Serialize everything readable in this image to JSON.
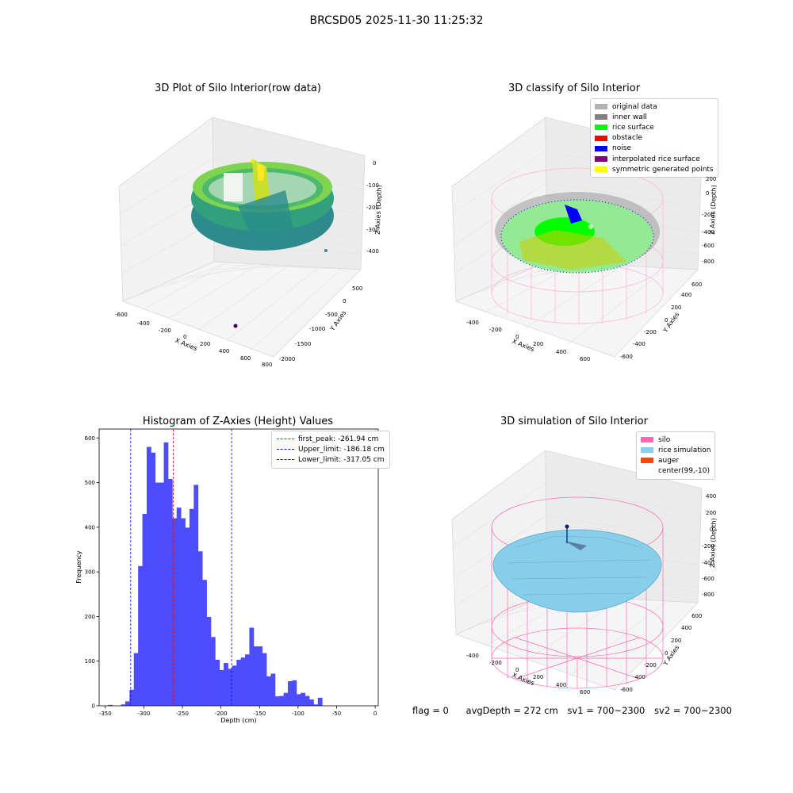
{
  "suptitle": "BRCSD05 2025-11-30 11:25:32",
  "panels": {
    "raw": {
      "title": "3D Plot of Silo Interior(row data)",
      "xlabel": "X Axies",
      "ylabel": "Y Axies",
      "zlabel": "Z Axies (Depth)",
      "xticks": [
        "-600",
        "-400",
        "-200",
        "0",
        "200",
        "400",
        "600",
        "800"
      ],
      "yticks": [
        "500",
        "0",
        "-500",
        "-1000",
        "-1500",
        "-2000"
      ],
      "zticks": [
        "0",
        "-100",
        "-200",
        "-300",
        "-400"
      ]
    },
    "classify": {
      "title": "3D classify of Silo Interior",
      "xlabel": "X Axies",
      "ylabel": "Y Axies",
      "zlabel": "Z Axies (Depth)",
      "xticks": [
        "-400",
        "-200",
        "0",
        "200",
        "400",
        "600"
      ],
      "yticks": [
        "600",
        "400",
        "200",
        "0",
        "-200",
        "-400",
        "-600"
      ],
      "zticks": [
        "200",
        "0",
        "-200",
        "-400",
        "-600",
        "-800"
      ],
      "legend": [
        {
          "label": "original data",
          "color": "#b3b3b3"
        },
        {
          "label": "inner wall",
          "color": "#808080"
        },
        {
          "label": "rice surface",
          "color": "#00ff00"
        },
        {
          "label": "obstacle",
          "color": "#ff0000"
        },
        {
          "label": "noise",
          "color": "#0000ff"
        },
        {
          "label": "interpolated rice surface",
          "color": "#800080"
        },
        {
          "label": "symmetric generated points",
          "color": "#ffff00"
        }
      ]
    },
    "simulation": {
      "title": "3D simulation of Silo Interior",
      "xlabel": "X Axies",
      "ylabel": "Y Axies",
      "zlabel": "Z Axies (Depth)",
      "xticks": [
        "-400",
        "-200",
        "0",
        "200",
        "400",
        "600"
      ],
      "yticks": [
        "600",
        "400",
        "200",
        "0",
        "-200",
        "-400",
        "-600"
      ],
      "zticks": [
        "400",
        "200",
        "0",
        "-200",
        "-400",
        "-600",
        "-800"
      ],
      "legend": [
        {
          "label": "silo",
          "color": "#ff69b4"
        },
        {
          "label": "rice simulation",
          "color": "#87ceeb"
        },
        {
          "label": "auger",
          "color": "#ff4500"
        },
        {
          "label": "center(99,-10)",
          "color": "none"
        }
      ]
    }
  },
  "chart_data": {
    "type": "bar",
    "title": "Histogram of Z-Axies (Height) Values",
    "xlabel": "Depth (cm)",
    "ylabel": "Frequency",
    "xlim": [
      -358,
      4
    ],
    "ylim": [
      0,
      620
    ],
    "xticks": [
      -350,
      -300,
      -250,
      -200,
      -150,
      -100,
      -50,
      0
    ],
    "yticks": [
      0,
      100,
      200,
      300,
      400,
      500,
      600
    ],
    "bar_color": "#4d4dff",
    "bin_start": -346.3,
    "bin_width": 5.55,
    "values": [
      2,
      0,
      0,
      3,
      10,
      36,
      118,
      313,
      430,
      580,
      567,
      500,
      500,
      590,
      508,
      420,
      444,
      420,
      399,
      441,
      495,
      346,
      282,
      199,
      154,
      103,
      80,
      96,
      83,
      90,
      103,
      108,
      115,
      175,
      133,
      133,
      118,
      66,
      72,
      21,
      22,
      29,
      55,
      57,
      26,
      29,
      22,
      14,
      3,
      18
    ],
    "vlines": [
      {
        "label": "first_peak: -261.94 cm",
        "x": -261.94,
        "color": "#ff0000"
      },
      {
        "label": "Upper_limit: -186.18 cm",
        "x": -186.18,
        "color": "#0000ff"
      },
      {
        "label": "Lower_limit: -317.05 cm",
        "x": -317.05,
        "color": "#0000ff"
      }
    ],
    "legend_position": "upper right",
    "grid": false
  },
  "footer": {
    "flag": "flag = 0",
    "avg": "avgDepth = 272 cm",
    "sv1": "sv1 = 700~2300",
    "sv2": "sv2 = 700~2300"
  }
}
